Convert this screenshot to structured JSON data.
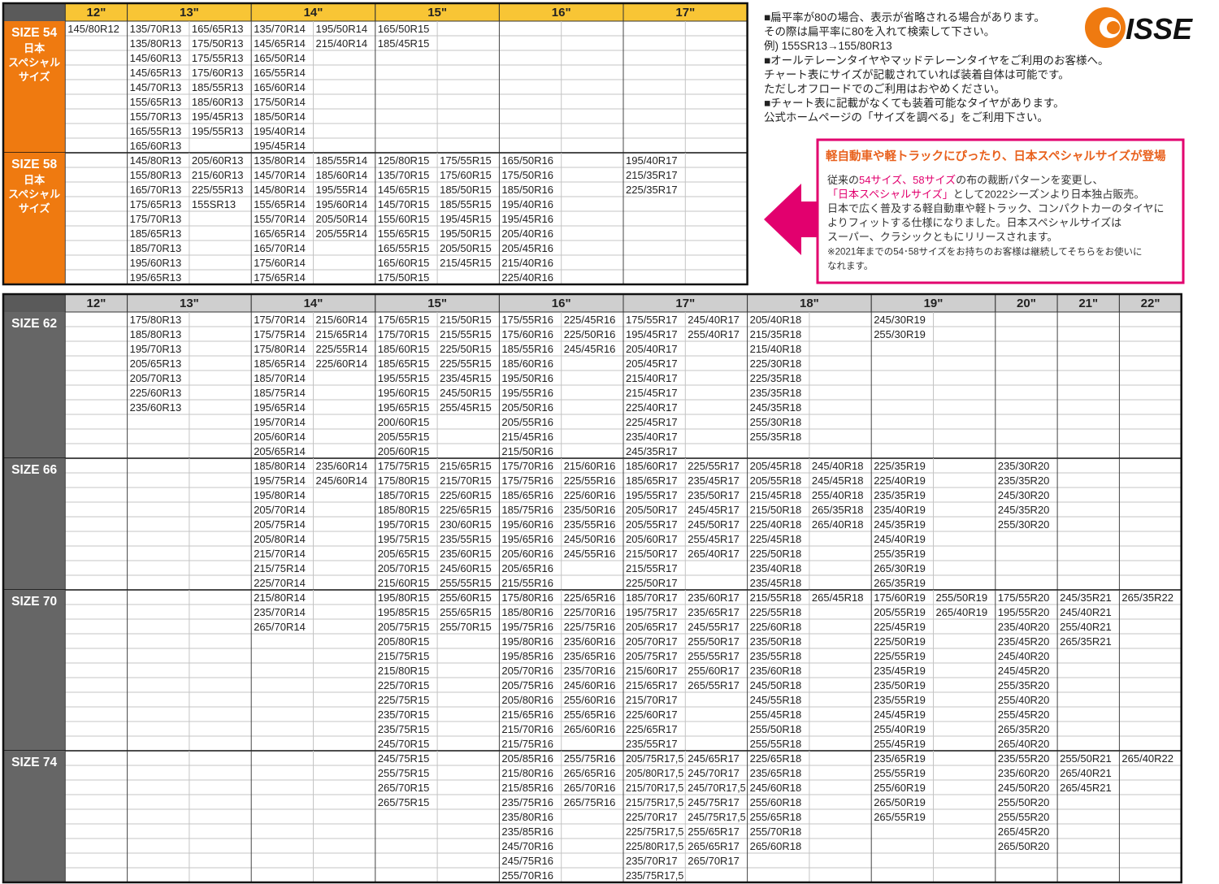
{
  "tables": [
    {
      "headers": [
        "12\"",
        "13\"",
        "14\"",
        "15\"",
        "16\"",
        "17\""
      ],
      "label_color": "#ef7a10",
      "header_color": "#f8c535",
      "groups": [
        {
          "label": "SIZE 54",
          "sublabel": [
            "日本",
            "スペシャル",
            "サイズ"
          ],
          "columns": [
            [
              [
                "145/80R12"
              ]
            ],
            [
              [
                "135/70R13",
                "135/80R13",
                "145/60R13",
                "145/65R13",
                "145/70R13",
                "155/65R13",
                "155/70R13",
                "165/55R13",
                "165/60R13"
              ],
              [
                "165/65R13",
                "175/50R13",
                "175/55R13",
                "175/60R13",
                "185/55R13",
                "185/60R13",
                "195/45R13",
                "195/55R13"
              ]
            ],
            [
              [
                "135/70R14",
                "145/65R14",
                "165/50R14",
                "165/55R14",
                "165/60R14",
                "175/50R14",
                "185/50R14",
                "195/40R14",
                "195/45R14"
              ],
              [
                "195/50R14",
                "215/40R14"
              ]
            ],
            [
              [
                "165/50R15",
                "185/45R15"
              ],
              []
            ],
            [
              [],
              []
            ],
            [
              [],
              []
            ]
          ]
        },
        {
          "label": "SIZE 58",
          "sublabel": [
            "日本",
            "スペシャル",
            "サイズ"
          ],
          "columns": [
            [
              []
            ],
            [
              [
                "145/80R13",
                "155/80R13",
                "165/70R13",
                "175/65R13",
                "175/70R13",
                "185/65R13",
                "185/70R13",
                "195/60R13",
                "195/65R13"
              ],
              [
                "205/60R13",
                "215/60R13",
                "225/55R13",
                "155SR13"
              ]
            ],
            [
              [
                "135/80R14",
                "145/70R14",
                "145/80R14",
                "155/65R14",
                "155/70R14",
                "165/65R14",
                "165/70R14",
                "175/60R14",
                "175/65R14"
              ],
              [
                "185/55R14",
                "185/60R14",
                "195/55R14",
                "195/60R14",
                "205/50R14",
                "205/55R14"
              ]
            ],
            [
              [
                "125/80R15",
                "135/70R15",
                "145/65R15",
                "145/70R15",
                "155/60R15",
                "155/65R15",
                "165/55R15",
                "165/60R15",
                "175/50R15"
              ],
              [
                "175/55R15",
                "175/60R15",
                "185/50R15",
                "185/55R15",
                "195/45R15",
                "195/50R15",
                "205/50R15",
                "215/45R15"
              ]
            ],
            [
              [
                "165/50R16",
                "175/50R16",
                "185/50R16",
                "195/40R16",
                "195/45R16",
                "205/40R16",
                "205/45R16",
                "215/40R16",
                "225/40R16"
              ],
              []
            ],
            [
              [
                "195/40R17",
                "215/35R17",
                "225/35R17"
              ],
              []
            ]
          ]
        }
      ]
    },
    {
      "headers": [
        "12\"",
        "13\"",
        "14\"",
        "15\"",
        "16\"",
        "17\"",
        "18\"",
        "19\"",
        "20\"",
        "21\"",
        "22\""
      ],
      "label_color": "#666666",
      "header_color": "#cfcfcf",
      "groups": [
        {
          "label": "SIZE 62",
          "columns": [
            [
              []
            ],
            [
              [
                "175/80R13",
                "185/80R13",
                "195/70R13",
                "205/65R13",
                "205/70R13",
                "225/60R13",
                "235/60R13"
              ],
              []
            ],
            [
              [
                "175/70R14",
                "175/75R14",
                "175/80R14",
                "185/65R14",
                "185/70R14",
                "185/75R14",
                "195/65R14",
                "195/70R14",
                "205/60R14",
                "205/65R14"
              ],
              [
                "215/60R14",
                "215/65R14",
                "225/55R14",
                "225/60R14"
              ]
            ],
            [
              [
                "175/65R15",
                "175/70R15",
                "185/60R15",
                "185/65R15",
                "195/55R15",
                "195/60R15",
                "195/65R15",
                "200/60R15",
                "205/55R15",
                "205/60R15"
              ],
              [
                "215/50R15",
                "215/55R15",
                "225/50R15",
                "225/55R15",
                "235/45R15",
                "245/50R15",
                "255/45R15"
              ]
            ],
            [
              [
                "175/55R16",
                "175/60R16",
                "185/55R16",
                "185/60R16",
                "195/50R16",
                "195/55R16",
                "205/50R16",
                "205/55R16",
                "215/45R16",
                "215/50R16"
              ],
              [
                "225/45R16",
                "225/50R16",
                "245/45R16"
              ]
            ],
            [
              [
                "175/55R17",
                "195/45R17",
                "205/40R17",
                "205/45R17",
                "215/40R17",
                "215/45R17",
                "225/40R17",
                "225/45R17",
                "235/40R17",
                "245/35R17"
              ],
              [
                "245/40R17",
                "255/40R17"
              ]
            ],
            [
              [
                "205/40R18",
                "215/35R18",
                "215/40R18",
                "225/30R18",
                "225/35R18",
                "235/35R18",
                "245/35R18",
                "255/30R18",
                "255/35R18"
              ],
              []
            ],
            [
              [
                "245/30R19",
                "255/30R19"
              ],
              []
            ],
            [
              []
            ],
            [
              []
            ],
            [
              []
            ]
          ]
        },
        {
          "label": "SIZE 66",
          "columns": [
            [
              []
            ],
            [
              [],
              []
            ],
            [
              [
                "185/80R14",
                "195/75R14",
                "195/80R14",
                "205/70R14",
                "205/75R14",
                "205/80R14",
                "215/70R14",
                "215/75R14",
                "225/70R14"
              ],
              [
                "235/60R14",
                "245/60R14"
              ]
            ],
            [
              [
                "175/75R15",
                "175/80R15",
                "185/70R15",
                "185/80R15",
                "195/70R15",
                "195/75R15",
                "205/65R15",
                "205/70R15",
                "215/60R15"
              ],
              [
                "215/65R15",
                "215/70R15",
                "225/60R15",
                "225/65R15",
                "230/60R15",
                "235/55R15",
                "235/60R15",
                "245/60R15",
                "255/55R15"
              ]
            ],
            [
              [
                "175/70R16",
                "175/75R16",
                "185/65R16",
                "185/75R16",
                "195/60R16",
                "195/65R16",
                "205/60R16",
                "205/65R16",
                "215/55R16"
              ],
              [
                "215/60R16",
                "225/55R16",
                "225/60R16",
                "235/50R16",
                "235/55R16",
                "245/50R16",
                "245/55R16"
              ]
            ],
            [
              [
                "185/60R17",
                "185/65R17",
                "195/55R17",
                "205/50R17",
                "205/55R17",
                "205/60R17",
                "215/50R17",
                "215/55R17",
                "225/50R17"
              ],
              [
                "225/55R17",
                "235/45R17",
                "235/50R17",
                "245/45R17",
                "245/50R17",
                "255/45R17",
                "265/40R17"
              ]
            ],
            [
              [
                "205/45R18",
                "205/55R18",
                "215/45R18",
                "215/50R18",
                "225/40R18",
                "225/45R18",
                "225/50R18",
                "235/40R18",
                "235/45R18"
              ],
              [
                "245/40R18",
                "245/45R18",
                "255/40R18",
                "265/35R18",
                "265/40R18"
              ]
            ],
            [
              [
                "225/35R19",
                "225/40R19",
                "235/35R19",
                "235/40R19",
                "245/35R19",
                "245/40R19",
                "255/35R19",
                "265/30R19",
                "265/35R19"
              ],
              []
            ],
            [
              [
                "235/30R20",
                "235/35R20",
                "245/30R20",
                "245/35R20",
                "255/30R20"
              ]
            ],
            [
              []
            ],
            [
              []
            ]
          ]
        },
        {
          "label": "SIZE 70",
          "columns": [
            [
              []
            ],
            [
              [],
              []
            ],
            [
              [
                "215/80R14",
                "235/70R14",
                "265/70R14"
              ],
              []
            ],
            [
              [
                "195/80R15",
                "195/85R15",
                "205/75R15",
                "205/80R15",
                "215/75R15",
                "215/80R15",
                "225/70R15",
                "225/75R15",
                "235/70R15",
                "235/75R15",
                "245/70R15"
              ],
              [
                "255/60R15",
                "255/65R15",
                "255/70R15"
              ]
            ],
            [
              [
                "175/80R16",
                "185/80R16",
                "195/75R16",
                "195/80R16",
                "195/85R16",
                "205/70R16",
                "205/75R16",
                "205/80R16",
                "215/65R16",
                "215/70R16",
                "215/75R16"
              ],
              [
                "225/65R16",
                "225/70R16",
                "225/75R16",
                "235/60R16",
                "235/65R16",
                "235/70R16",
                "245/60R16",
                "255/60R16",
                "255/65R16",
                "265/60R16"
              ]
            ],
            [
              [
                "185/70R17",
                "195/75R17",
                "205/65R17",
                "205/70R17",
                "205/75R17",
                "215/60R17",
                "215/65R17",
                "215/70R17",
                "225/60R17",
                "225/65R17",
                "235/55R17"
              ],
              [
                "235/60R17",
                "235/65R17",
                "245/55R17",
                "255/50R17",
                "255/55R17",
                "255/60R17",
                "265/55R17"
              ]
            ],
            [
              [
                "215/55R18",
                "225/55R18",
                "225/60R18",
                "235/50R18",
                "235/55R18",
                "235/60R18",
                "245/50R18",
                "245/55R18",
                "255/45R18",
                "255/50R18",
                "255/55R18"
              ],
              [
                "265/45R18"
              ]
            ],
            [
              [
                "175/60R19",
                "205/55R19",
                "225/45R19",
                "225/50R19",
                "225/55R19",
                "235/45R19",
                "235/50R19",
                "235/55R19",
                "245/45R19",
                "255/40R19",
                "255/45R19"
              ],
              [
                "255/50R19",
                "265/40R19"
              ]
            ],
            [
              [
                "175/55R20",
                "195/55R20",
                "235/40R20",
                "235/45R20",
                "245/40R20",
                "245/45R20",
                "255/35R20",
                "255/40R20",
                "255/45R20",
                "265/35R20",
                "265/40R20"
              ]
            ],
            [
              [
                "245/35R21",
                "245/40R21",
                "255/40R21",
                "265/35R21"
              ]
            ],
            [
              [
                "265/35R22"
              ]
            ]
          ]
        },
        {
          "label": "SIZE 74",
          "columns": [
            [
              []
            ],
            [
              [],
              []
            ],
            [
              [],
              []
            ],
            [
              [
                "245/75R15",
                "255/75R15",
                "265/70R15",
                "265/75R15"
              ],
              []
            ],
            [
              [
                "205/85R16",
                "215/80R16",
                "215/85R16",
                "235/75R16",
                "235/80R16",
                "235/85R16",
                "245/70R16",
                "245/75R16",
                "255/70R16"
              ],
              [
                "255/75R16",
                "265/65R16",
                "265/70R16",
                "265/75R16"
              ]
            ],
            [
              [
                "205/75R17,5",
                "205/80R17,5",
                "215/70R17,5",
                "215/75R17,5",
                "225/70R17",
                "225/75R17,5",
                "225/80R17,5",
                "235/70R17",
                "235/75R17,5"
              ],
              [
                "245/65R17",
                "245/70R17",
                "245/70R17,5",
                "245/75R17",
                "245/75R17,5",
                "255/65R17",
                "265/65R17",
                "265/70R17"
              ]
            ],
            [
              [
                "225/65R18",
                "235/65R18",
                "245/60R18",
                "255/60R18",
                "255/65R18",
                "255/70R18",
                "265/60R18"
              ],
              []
            ],
            [
              [
                "235/65R19",
                "255/55R19",
                "255/60R19",
                "265/50R19",
                "265/55R19"
              ],
              []
            ],
            [
              [
                "235/55R20",
                "235/60R20",
                "245/50R20",
                "255/50R20",
                "255/55R20",
                "265/45R20",
                "265/50R20"
              ]
            ],
            [
              [
                "255/50R21",
                "265/40R21",
                "265/45R21"
              ]
            ],
            [
              [
                "265/40R22"
              ]
            ]
          ]
        }
      ]
    }
  ],
  "notes": [
    "■扁平率が80の場合、表示が省略される場合があります。",
    "その際は扁平率に80を入れて検索して下さい。",
    "例) 155SR13→155/80R13",
    "■オールテレーンタイヤやマッドテレーンタイヤをご利用のお客様へ。",
    "チャート表にサイズが記載されていれば装着自体は可能です。",
    "ただしオフロードでのご利用はおやめください。",
    "■チャート表に記載がなくても装着可能なタイヤがあります。",
    "公式ホームページの「サイズを調べる」をご利用下さい。"
  ],
  "logo": "ISSE",
  "callout": {
    "title": "軽自動車や軽トラックにぴったり、日本スペシャルサイズが登場",
    "color": "#e2006e",
    "lines": [
      [
        {
          "text": "従来の"
        },
        {
          "text": "54サイズ、58サイズ",
          "color": "#e2006e"
        },
        {
          "text": "の布の裁断パターンを変更し、"
        }
      ],
      [
        {
          "text": "「日本スペシャルサイズ」",
          "color": "#e2006e"
        },
        {
          "text": "として2022シーズンより日本独占販売。"
        }
      ],
      [
        {
          "text": "日本で広く普及する軽自動車や軽トラック、コンパクトカーのタイヤに"
        }
      ],
      [
        {
          "text": "よりフィットする仕様になりました。日本スペシャルサイズは"
        }
      ],
      [
        {
          "text": "スーパー、クラシックともにリリースされます。"
        }
      ],
      [
        {
          "text": "※2021年までの54･58サイズをお持ちのお客様は継続してそちらをお使いに"
        }
      ],
      [
        {
          "text": "なれます。"
        }
      ]
    ]
  }
}
